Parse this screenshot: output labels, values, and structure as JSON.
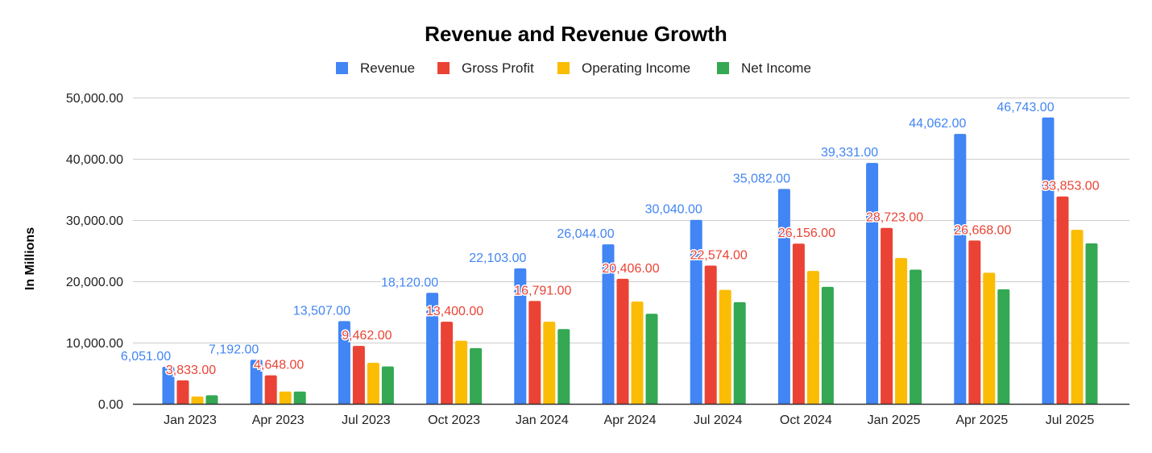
{
  "chart_data": {
    "type": "bar",
    "title": "Revenue and Revenue Growth",
    "xlabel": "",
    "ylabel": "In Millions",
    "ylim": [
      0,
      50000
    ],
    "yticks": [
      "0.00",
      "10,000.00",
      "20,000.00",
      "30,000.00",
      "40,000.00",
      "50,000.00"
    ],
    "grid": true,
    "legend_position": "top",
    "categories": [
      "Jan 2023",
      "Apr 2023",
      "Jul 2023",
      "Oct 2023",
      "Jan 2024",
      "Apr 2024",
      "Jul 2024",
      "Oct 2024",
      "Jan 2025",
      "Apr 2025",
      "Jul 2025"
    ],
    "series": [
      {
        "name": "Revenue",
        "color": "#4285F4",
        "labeled": true,
        "values": [
          6051,
          7192,
          13507,
          18120,
          22103,
          26044,
          30040,
          35082,
          39331,
          44062,
          46743
        ]
      },
      {
        "name": "Gross Profit",
        "color": "#EA4335",
        "labeled": true,
        "values": [
          3833,
          4648,
          9462,
          13400,
          16791,
          20406,
          22574,
          26156,
          28723,
          26668,
          33853
        ]
      },
      {
        "name": "Operating Income",
        "color": "#FBBC04",
        "labeled": false,
        "values": [
          1200,
          2000,
          6700,
          10300,
          13400,
          16700,
          18600,
          21700,
          23800,
          21400,
          28400
        ]
      },
      {
        "name": "Net Income",
        "color": "#34A853",
        "labeled": false,
        "values": [
          1400,
          2000,
          6100,
          9100,
          12200,
          14700,
          16600,
          19100,
          21900,
          18700,
          26200
        ]
      }
    ]
  }
}
